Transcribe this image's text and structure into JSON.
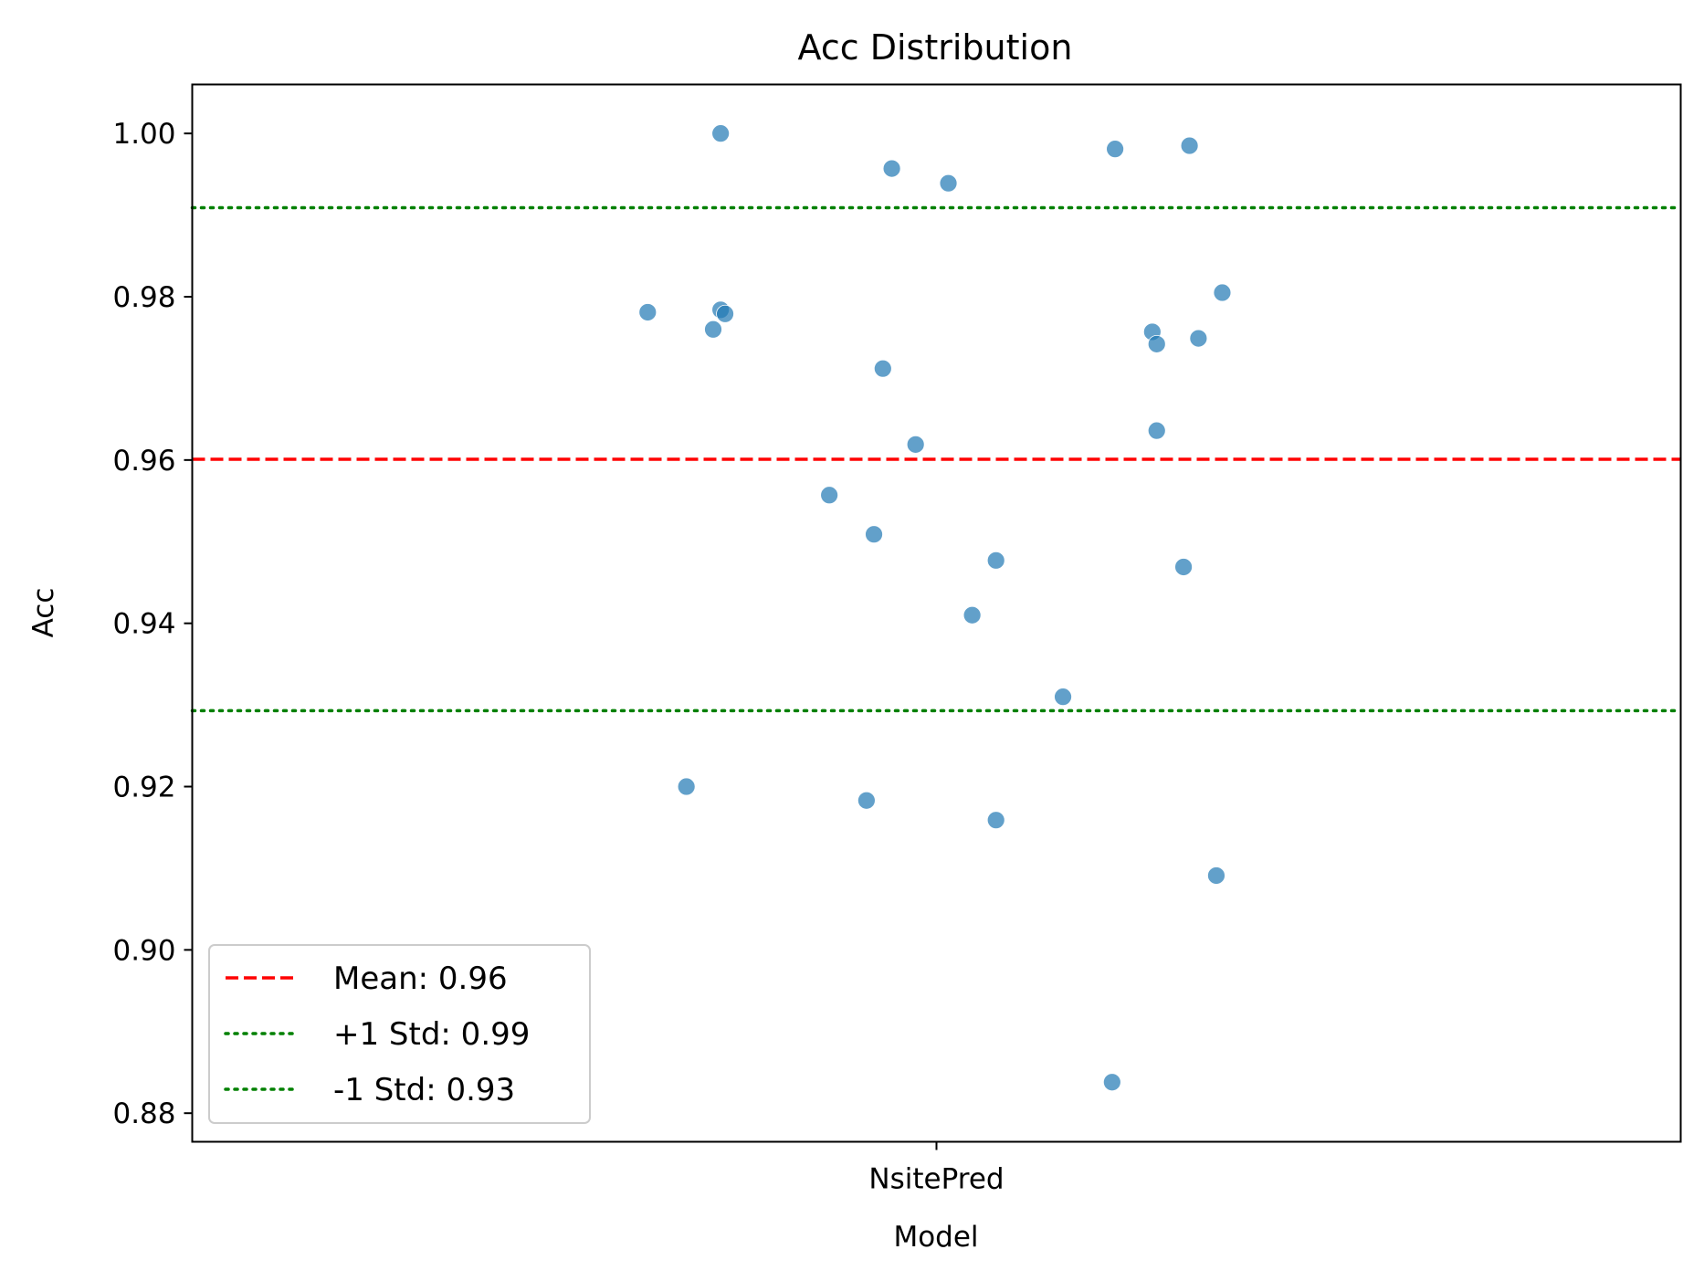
{
  "chart_data": {
    "type": "scatter",
    "title": "Acc Distribution",
    "xlabel": "Model",
    "ylabel": "Acc",
    "categories": [
      "NsitePred"
    ],
    "ylim": [
      0.8765,
      1.006
    ],
    "yticks": [
      "0.88",
      "0.90",
      "0.92",
      "0.94",
      "0.96",
      "0.98",
      "1.00"
    ],
    "ytick_values": [
      0.88,
      0.9,
      0.92,
      0.94,
      0.96,
      0.98,
      1.0
    ],
    "jitter_range": [
      -0.5,
      0.5
    ],
    "point_color": "#1f77b4",
    "series": [
      {
        "category": "NsitePred",
        "points": [
          {
            "jitter": -0.145,
            "value": 1.0
          },
          {
            "jitter": -0.03,
            "value": 0.9957
          },
          {
            "jitter": 0.008,
            "value": 0.9939
          },
          {
            "jitter": 0.12,
            "value": 0.9981
          },
          {
            "jitter": 0.17,
            "value": 0.9985
          },
          {
            "jitter": -0.194,
            "value": 0.9781
          },
          {
            "jitter": -0.145,
            "value": 0.9784
          },
          {
            "jitter": -0.142,
            "value": 0.9779
          },
          {
            "jitter": -0.15,
            "value": 0.976
          },
          {
            "jitter": 0.192,
            "value": 0.9805
          },
          {
            "jitter": 0.145,
            "value": 0.9757
          },
          {
            "jitter": 0.148,
            "value": 0.9742
          },
          {
            "jitter": 0.176,
            "value": 0.9749
          },
          {
            "jitter": -0.036,
            "value": 0.9712
          },
          {
            "jitter": 0.148,
            "value": 0.9636
          },
          {
            "jitter": -0.014,
            "value": 0.9619
          },
          {
            "jitter": -0.072,
            "value": 0.9557
          },
          {
            "jitter": -0.042,
            "value": 0.9509
          },
          {
            "jitter": 0.04,
            "value": 0.9477
          },
          {
            "jitter": 0.166,
            "value": 0.9469
          },
          {
            "jitter": 0.024,
            "value": 0.941
          },
          {
            "jitter": 0.085,
            "value": 0.931
          },
          {
            "jitter": -0.168,
            "value": 0.92
          },
          {
            "jitter": -0.047,
            "value": 0.9183
          },
          {
            "jitter": 0.04,
            "value": 0.9159
          },
          {
            "jitter": 0.188,
            "value": 0.9091
          },
          {
            "jitter": 0.118,
            "value": 0.8838
          }
        ]
      }
    ],
    "reference_lines": [
      {
        "label": "Mean: 0.96",
        "value": 0.9601,
        "color": "#ff0000",
        "style": "dashed"
      },
      {
        "label": "+1 Std: 0.99",
        "value": 0.9909,
        "color": "#008000",
        "style": "dotted"
      },
      {
        "label": "-1 Std: 0.93",
        "value": 0.9293,
        "color": "#008000",
        "style": "dotted"
      }
    ],
    "grid": false,
    "legend_position": "lower-left"
  }
}
